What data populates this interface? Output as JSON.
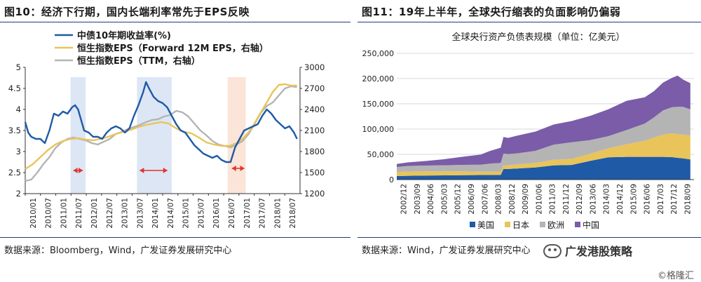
{
  "left": {
    "fig_num": "图10",
    "fig_title": "：经济下行期，国内长端利率常先于EPS反映",
    "source": "数据来源：Bloomberg，Wind，广发证券发展研究中心"
  },
  "right": {
    "fig_num": "图11",
    "fig_title": "：19年上半年，全球央行缩表的负面影响仍偏弱",
    "source": "数据来源：Wind，广发证券发展研究中心"
  },
  "brand": {
    "name": "广发港股策略",
    "watermark": "©格隆汇"
  },
  "chart_data": [
    {
      "type": "line",
      "title": "",
      "legend_position": "top-left",
      "x_tick_labels": [
        "2010/01",
        "2010/07",
        "2011/01",
        "2011/07",
        "2012/01",
        "2012/07",
        "2013/01",
        "2013/07",
        "2014/01",
        "2014/07",
        "2015/01",
        "2015/07",
        "2016/01",
        "2016/07",
        "2017/01",
        "2017/07",
        "2018/01",
        "2018/07"
      ],
      "xlim": [
        2010.0,
        2019.1
      ],
      "y_left": {
        "ylim": [
          2,
          5
        ],
        "ticks": [
          "2",
          "2.5",
          "3",
          "3.5",
          "4",
          "4.5",
          "5"
        ]
      },
      "y_right": {
        "ylim": [
          1200,
          3000
        ],
        "ticks": [
          "1200",
          "1500",
          "1800",
          "2100",
          "2400",
          "2700",
          "3000"
        ]
      },
      "shaded_regions": [
        {
          "start": 2011.5,
          "end": 2012.0,
          "color": "#dde6f5"
        },
        {
          "start": 2013.7,
          "end": 2014.85,
          "color": "#dde6f5"
        },
        {
          "start": 2016.7,
          "end": 2017.3,
          "color": "#fbe4d8"
        }
      ],
      "arrows": [
        {
          "start": 2011.5,
          "end": 2012.0,
          "y": 2.55
        },
        {
          "start": 2013.7,
          "end": 2014.8,
          "y": 2.55
        },
        {
          "start": 2016.75,
          "end": 2017.35,
          "y": 2.6
        }
      ],
      "series": [
        {
          "name": "中债10年期收益率(%)",
          "axis": "left",
          "color": "#1f5aa6",
          "x": [
            2010.0,
            2010.1,
            2010.2,
            2010.35,
            2010.5,
            2010.65,
            2010.8,
            2010.95,
            2011.1,
            2011.25,
            2011.4,
            2011.55,
            2011.65,
            2011.75,
            2011.85,
            2011.95,
            2012.1,
            2012.25,
            2012.4,
            2012.55,
            2012.7,
            2012.85,
            2013.0,
            2013.15,
            2013.3,
            2013.45,
            2013.6,
            2013.75,
            2013.9,
            2014.0,
            2014.1,
            2014.25,
            2014.4,
            2014.55,
            2014.7,
            2014.85,
            2015.0,
            2015.15,
            2015.3,
            2015.45,
            2015.6,
            2015.75,
            2015.9,
            2016.05,
            2016.2,
            2016.35,
            2016.5,
            2016.65,
            2016.8,
            2016.95,
            2017.1,
            2017.25,
            2017.4,
            2017.55,
            2017.7,
            2017.85,
            2018.0,
            2018.15,
            2018.3,
            2018.45,
            2018.6,
            2018.75,
            2018.9,
            2019.0
          ],
          "y": [
            3.7,
            3.45,
            3.35,
            3.3,
            3.3,
            3.2,
            3.5,
            3.9,
            3.85,
            3.95,
            3.9,
            4.05,
            4.1,
            4.0,
            3.75,
            3.5,
            3.45,
            3.35,
            3.35,
            3.3,
            3.45,
            3.55,
            3.6,
            3.55,
            3.45,
            3.55,
            3.85,
            4.1,
            4.4,
            4.65,
            4.5,
            4.3,
            4.2,
            4.15,
            4.05,
            3.85,
            3.65,
            3.5,
            3.45,
            3.3,
            3.15,
            3.05,
            2.95,
            2.9,
            2.85,
            2.9,
            2.8,
            2.75,
            2.75,
            3.1,
            3.3,
            3.5,
            3.55,
            3.6,
            3.65,
            3.85,
            4.0,
            3.9,
            3.75,
            3.65,
            3.55,
            3.6,
            3.45,
            3.3
          ]
        },
        {
          "name": "恒生指数EPS（Forward 12M EPS，右轴）",
          "axis": "right",
          "color": "#e8c45a",
          "x": [
            2010.0,
            2010.25,
            2010.5,
            2010.75,
            2011.0,
            2011.25,
            2011.5,
            2011.75,
            2012.0,
            2012.25,
            2012.5,
            2012.75,
            2013.0,
            2013.25,
            2013.5,
            2013.75,
            2014.0,
            2014.25,
            2014.5,
            2014.75,
            2015.0,
            2015.25,
            2015.5,
            2015.75,
            2016.0,
            2016.25,
            2016.5,
            2016.75,
            2017.0,
            2017.25,
            2017.5,
            2017.75,
            2018.0,
            2018.2,
            2018.4,
            2018.6,
            2018.8,
            2019.0
          ],
          "y": [
            1550,
            1620,
            1720,
            1820,
            1900,
            1950,
            1980,
            1990,
            1970,
            1960,
            1980,
            2010,
            2050,
            2080,
            2110,
            2150,
            2180,
            2200,
            2220,
            2200,
            2130,
            2080,
            2060,
            2000,
            1930,
            1900,
            1880,
            1880,
            1920,
            2000,
            2130,
            2320,
            2500,
            2650,
            2750,
            2760,
            2740,
            2740
          ]
        },
        {
          "name": "恒生指数EPS（TTM，右轴）",
          "axis": "right",
          "color": "#b4b4b4",
          "x": [
            2010.0,
            2010.2,
            2010.4,
            2010.6,
            2010.8,
            2011.0,
            2011.2,
            2011.4,
            2011.6,
            2011.8,
            2012.0,
            2012.2,
            2012.4,
            2012.6,
            2012.8,
            2013.0,
            2013.2,
            2013.4,
            2013.6,
            2013.8,
            2014.0,
            2014.2,
            2014.4,
            2014.6,
            2014.8,
            2015.0,
            2015.2,
            2015.4,
            2015.6,
            2015.8,
            2016.0,
            2016.2,
            2016.4,
            2016.6,
            2016.8,
            2017.0,
            2017.2,
            2017.4,
            2017.6,
            2017.8,
            2018.0,
            2018.2,
            2018.4,
            2018.6,
            2018.8,
            2019.0
          ],
          "y": [
            1380,
            1400,
            1500,
            1620,
            1720,
            1850,
            1930,
            1980,
            2000,
            1980,
            1960,
            1920,
            1900,
            1940,
            1980,
            2050,
            2080,
            2120,
            2150,
            2180,
            2220,
            2250,
            2260,
            2300,
            2320,
            2380,
            2360,
            2300,
            2200,
            2100,
            2030,
            1950,
            1900,
            1880,
            1860,
            1900,
            1950,
            2050,
            2200,
            2350,
            2450,
            2500,
            2600,
            2700,
            2730,
            2720
          ]
        }
      ]
    },
    {
      "type": "area",
      "title": "全球央行资产负债表规模（单位：亿美元）",
      "legend_position": "bottom",
      "x_tick_labels": [
        "2002/12",
        "2003/09",
        "2004/06",
        "2005/03",
        "2005/12",
        "2006/09",
        "2007/06",
        "2008/03",
        "2008/12",
        "2009/09",
        "2010/06",
        "2011/03",
        "2011/12",
        "2012/09",
        "2013/06",
        "2014/03",
        "2014/12",
        "2015/09",
        "2016/06",
        "2017/03",
        "2017/12",
        "2018/09"
      ],
      "xlim": [
        2002.9,
        2019.2
      ],
      "ylim": [
        0,
        250000
      ],
      "y_ticks": [
        "0",
        "50,000",
        "100,000",
        "150,000",
        "200,000",
        "250,000"
      ],
      "stacked": true,
      "x": [
        2002.9,
        2003.5,
        2004.5,
        2005.5,
        2006.5,
        2007.5,
        2008.0,
        2008.6,
        2008.75,
        2009.0,
        2009.5,
        2010.5,
        2011.5,
        2012.5,
        2013.5,
        2014.5,
        2015.5,
        2016.5,
        2017.0,
        2017.5,
        2018.0,
        2018.3,
        2018.6,
        2019.0
      ],
      "series": [
        {
          "name": "美国",
          "color": "#1f5aa6",
          "values": [
            7000,
            7500,
            8000,
            8300,
            8700,
            9000,
            9000,
            9000,
            21000,
            21000,
            22000,
            24000,
            28000,
            29000,
            37000,
            44000,
            45000,
            45000,
            45000,
            45000,
            44500,
            43000,
            42000,
            40000
          ]
        },
        {
          "name": "日本",
          "color": "#e8c45a",
          "values": [
            8000,
            8500,
            8300,
            8000,
            7500,
            6500,
            6500,
            7000,
            7500,
            7500,
            8000,
            9000,
            11000,
            12000,
            14000,
            18000,
            25000,
            32000,
            38000,
            44000,
            47000,
            47000,
            47000,
            47000
          ]
        },
        {
          "name": "欧洲",
          "color": "#b4b4b4",
          "values": [
            10000,
            11000,
            11500,
            12000,
            13000,
            14000,
            16000,
            17000,
            23000,
            22000,
            22000,
            24000,
            30000,
            33000,
            27000,
            24000,
            28000,
            34000,
            40000,
            48000,
            52000,
            54000,
            55000,
            52000
          ]
        },
        {
          "name": "中国",
          "color": "#7a5ca8",
          "values": [
            6000,
            7000,
            9000,
            12000,
            16000,
            20000,
            25000,
            30000,
            33000,
            32000,
            35000,
            38000,
            40000,
            42000,
            48000,
            53000,
            58000,
            52000,
            52000,
            55000,
            58000,
            62000,
            54000,
            52000
          ]
        }
      ]
    }
  ]
}
